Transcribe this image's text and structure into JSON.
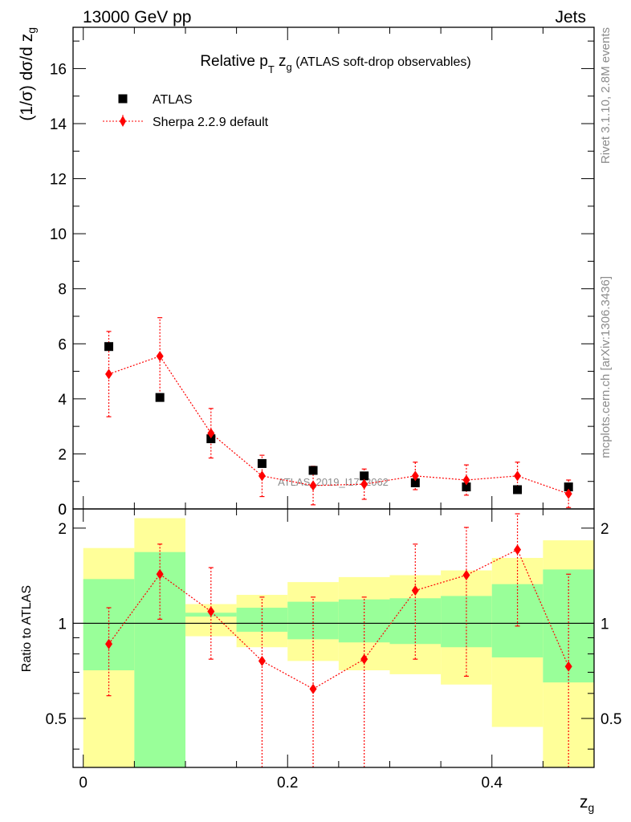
{
  "header": {
    "left": "13000 GeV pp",
    "right": "Jets"
  },
  "side_texts": {
    "top": "Rivet 3.1.10,  2.8M events",
    "bottom": "mcplots.cern.ch [arXiv:1306.3436]"
  },
  "watermark": "ATLAS_2019_I1772062",
  "colors": {
    "mc": "#ff0000",
    "data": "#000000",
    "band_inner": "#99ff99",
    "band_outer": "#ffff99"
  },
  "chart_data": [
    {
      "type": "scatter",
      "panel": "main",
      "title_main": "Relative p",
      "title_sub_T": "T",
      "title_z": " z",
      "title_sub_g": "g",
      "title_rest": " (ATLAS soft-drop observables)",
      "ylabel": "(1/σ) dσ/d z",
      "ylabel_sub": "g",
      "ylim": [
        0,
        17.5
      ],
      "yticks": [
        0,
        2,
        4,
        6,
        8,
        10,
        12,
        14,
        16
      ],
      "legend_placement": "top-left",
      "series": [
        {
          "name": "ATLAS",
          "marker": "square",
          "x": [
            0.025,
            0.075,
            0.125,
            0.175,
            0.225,
            0.275,
            0.325,
            0.375,
            0.425,
            0.475
          ],
          "y": [
            5.9,
            4.05,
            2.55,
            1.65,
            1.4,
            1.2,
            0.95,
            0.8,
            0.7,
            0.8
          ]
        },
        {
          "name": "Sherpa 2.2.9 default",
          "marker": "diamond",
          "x": [
            0.025,
            0.075,
            0.125,
            0.175,
            0.225,
            0.275,
            0.325,
            0.375,
            0.425,
            0.475
          ],
          "y": [
            4.9,
            5.55,
            2.75,
            1.2,
            0.85,
            0.9,
            1.2,
            1.05,
            1.2,
            0.55
          ],
          "yerr": [
            1.55,
            1.4,
            0.9,
            0.75,
            0.7,
            0.55,
            0.5,
            0.55,
            0.5,
            0.5
          ]
        }
      ]
    },
    {
      "type": "scatter",
      "panel": "ratio",
      "ylabel": "Ratio to ATLAS",
      "xlabel": "z",
      "xlabel_sub": "g",
      "xlim": [
        -0.01,
        0.5
      ],
      "ylim": [
        0.35,
        2.3
      ],
      "xticks": [
        0,
        0.2,
        0.4
      ],
      "xtick_labels": [
        "0",
        "0.2",
        "0.4"
      ],
      "yticks": [
        0.5,
        1,
        2
      ],
      "ytick_labels": [
        "0.5",
        "1",
        "2"
      ],
      "bins": [
        [
          0,
          0.05
        ],
        [
          0.05,
          0.1
        ],
        [
          0.1,
          0.15
        ],
        [
          0.15,
          0.2
        ],
        [
          0.2,
          0.25
        ],
        [
          0.25,
          0.3
        ],
        [
          0.3,
          0.35
        ],
        [
          0.35,
          0.4
        ],
        [
          0.4,
          0.45
        ],
        [
          0.45,
          0.5
        ]
      ],
      "band_inner": [
        [
          0.71,
          1.38
        ],
        [
          0.3,
          1.68
        ],
        [
          1.05,
          1.08
        ],
        [
          0.94,
          1.12
        ],
        [
          0.89,
          1.17
        ],
        [
          0.87,
          1.19
        ],
        [
          0.86,
          1.2
        ],
        [
          0.84,
          1.22
        ],
        [
          0.78,
          1.33
        ],
        [
          0.65,
          1.48
        ]
      ],
      "band_outer": [
        [
          0.3,
          1.73
        ],
        [
          0.3,
          2.15
        ],
        [
          0.91,
          1.15
        ],
        [
          0.84,
          1.23
        ],
        [
          0.76,
          1.35
        ],
        [
          0.71,
          1.4
        ],
        [
          0.69,
          1.42
        ],
        [
          0.64,
          1.47
        ],
        [
          0.47,
          1.61
        ],
        [
          0.3,
          1.83
        ]
      ],
      "ratio": {
        "x": [
          0.025,
          0.075,
          0.125,
          0.175,
          0.225,
          0.275,
          0.325,
          0.375,
          0.425,
          0.475
        ],
        "y": [
          0.86,
          1.43,
          1.09,
          0.76,
          0.62,
          0.77,
          1.27,
          1.42,
          1.71,
          0.73
        ],
        "lo": [
          0.59,
          1.03,
          0.77,
          0.35,
          0.35,
          0.35,
          0.77,
          0.68,
          0.98,
          0.35
        ],
        "hi": [
          1.12,
          1.78,
          1.5,
          1.21,
          1.21,
          1.21,
          1.78,
          2.01,
          2.22,
          1.43
        ]
      }
    }
  ]
}
